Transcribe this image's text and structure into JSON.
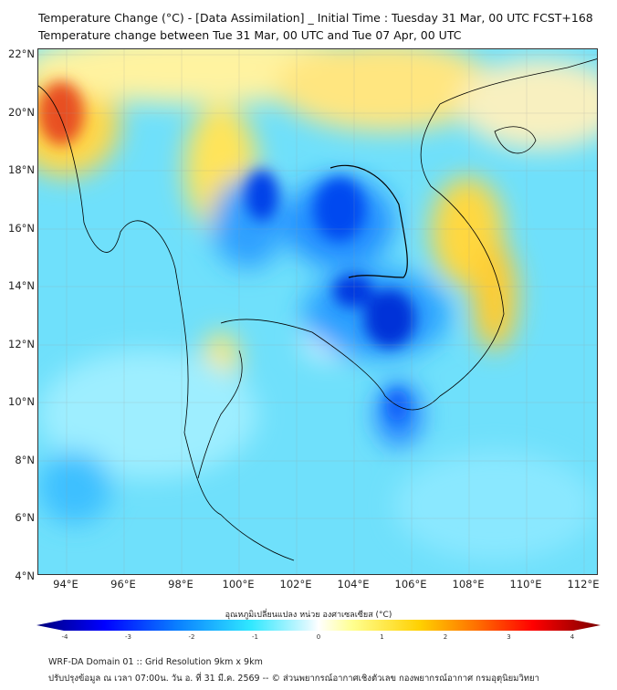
{
  "title": {
    "line1": "Temperature Change (°C) - [Data Assimilation] _ Initial Time : Tuesday 31 Mar, 00 UTC FCST+168",
    "line2": "Temperature change between Tue 31 Mar, 00 UTC and Tue 07 Apr, 00 UTC"
  },
  "map": {
    "lat_labels": [
      "22°N",
      "20°N",
      "18°N",
      "16°N",
      "14°N",
      "12°N",
      "10°N",
      "8°N",
      "6°N",
      "4°N"
    ],
    "lon_labels": [
      "94°E",
      "96°E",
      "98°E",
      "100°E",
      "102°E",
      "104°E",
      "106°E",
      "108°E",
      "110°E",
      "112°E"
    ]
  },
  "colorbar": {
    "title": "อุณหภูมิเปลี่ยนแปลง หน่วย องศาเซลเซียส (°C)",
    "ticks": [
      "-4",
      "-3",
      "-2",
      "-1",
      "0",
      "1",
      "2",
      "3",
      "4"
    ],
    "range": [
      -4,
      4
    ],
    "colors": [
      "#00007a",
      "#0000ff",
      "#0a6cff",
      "#25e0ff",
      "#c8f6ff",
      "#ffffff",
      "#ffff80",
      "#ffd000",
      "#ff7000",
      "#ff0000",
      "#7a0000"
    ]
  },
  "footer": {
    "line1": "WRF-DA Domain 01 :: Grid Resolution 9km x 9km",
    "line2": "ปรับปรุงข้อมูล ณ เวลา 07:00น. วัน อ. ที่ 31 มี.ค. 2569 -- © ส่วนพยากรณ์อากาศเชิงตัวเลข กองพยากรณ์อากาศ กรมอุตุนิยมวิทยา"
  }
}
